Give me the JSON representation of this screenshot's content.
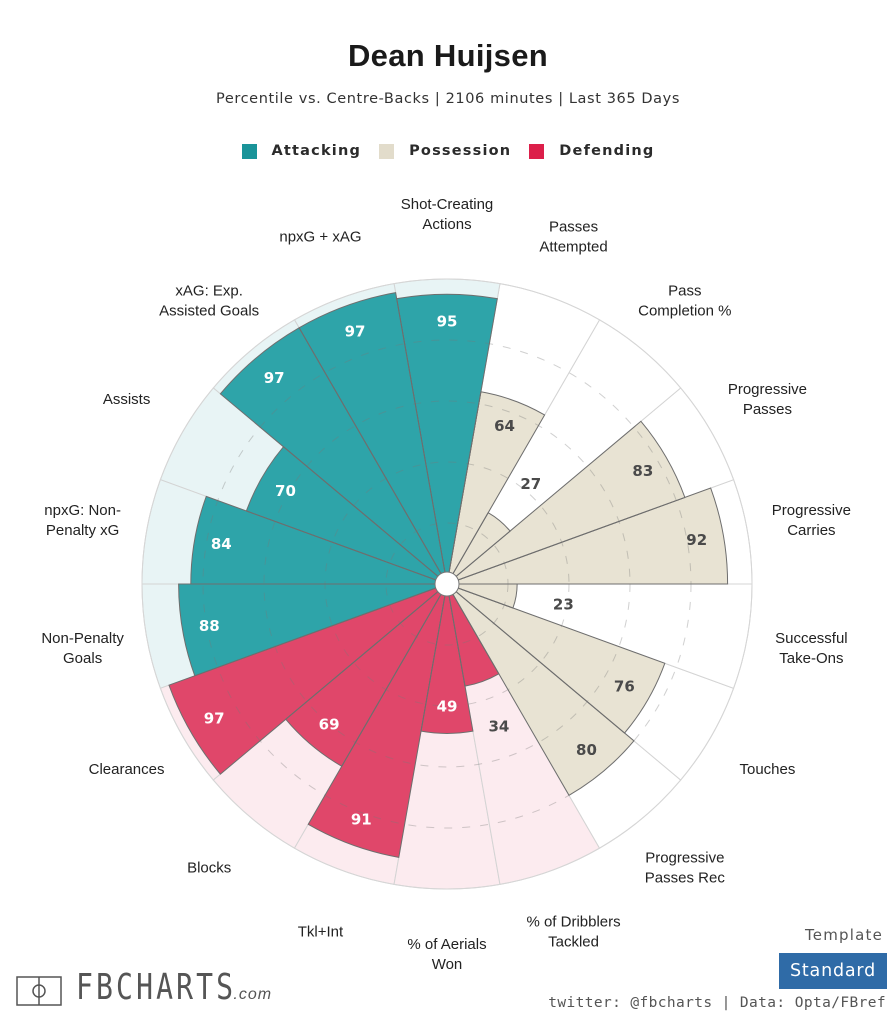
{
  "header": {
    "title": "Dean Huijsen",
    "subtitle": "Percentile vs. Centre-Backs | 2106 minutes | Last 365 Days"
  },
  "legend": [
    {
      "label": "Attacking",
      "color": "#1a9499"
    },
    {
      "label": "Possession",
      "color": "#e2dccb"
    },
    {
      "label": "Defending",
      "color": "#dc1f4a"
    }
  ],
  "colors": {
    "attacking_fill": "#2ea4a9",
    "possession_fill": "#e8e3d3",
    "defending_fill": "#e0476a",
    "attacking_bg": "#e8f4f5",
    "possession_bg": "#ffffff",
    "defending_bg": "#fcebef",
    "value_light": "#ffffff",
    "value_dark": "#4a4a4a"
  },
  "chart_data": {
    "type": "pie",
    "subtype": "polar-bar (pizza)",
    "title": "Dean Huijsen",
    "subtitle": "Percentile vs. Centre-Backs | 2106 minutes | Last 365 Days",
    "range": [
      0,
      100
    ],
    "gridlines": [
      20,
      40,
      60,
      80
    ],
    "legend_placement": "top-center",
    "start_direction": "east, counterclockwise",
    "categories": [
      {
        "label": "Progressive Carries",
        "value": 92,
        "group": "Possession"
      },
      {
        "label": "Progressive Passes",
        "value": 83,
        "group": "Possession"
      },
      {
        "label": "Pass Completion %",
        "value": 27,
        "group": "Possession"
      },
      {
        "label": "Passes Attempted",
        "value": 64,
        "group": "Possession"
      },
      {
        "label": "Shot-Creating Actions",
        "value": 95,
        "group": "Attacking"
      },
      {
        "label": "npxG + xAG",
        "value": 97,
        "group": "Attacking"
      },
      {
        "label": "xAG: Exp. Assisted Goals",
        "value": 97,
        "group": "Attacking"
      },
      {
        "label": "Assists",
        "value": 70,
        "group": "Attacking"
      },
      {
        "label": "npxG: Non-Penalty xG",
        "value": 84,
        "group": "Attacking"
      },
      {
        "label": "Non-Penalty Goals",
        "value": 88,
        "group": "Attacking"
      },
      {
        "label": "Clearances",
        "value": 97,
        "group": "Defending"
      },
      {
        "label": "Blocks",
        "value": 69,
        "group": "Defending"
      },
      {
        "label": "Tkl+Int",
        "value": 91,
        "group": "Defending"
      },
      {
        "label": "% of Aerials Won",
        "value": 49,
        "group": "Defending"
      },
      {
        "label": "% of Dribblers Tackled",
        "value": 34,
        "group": "Defending"
      },
      {
        "label": "Progressive Passes Rec",
        "value": 80,
        "group": "Possession"
      },
      {
        "label": "Touches",
        "value": 76,
        "group": "Possession"
      },
      {
        "label": "Successful Take-Ons",
        "value": 23,
        "group": "Possession"
      }
    ],
    "label_lines": [
      [
        "Progressive",
        "Carries"
      ],
      [
        "Progressive",
        "Passes"
      ],
      [
        "Pass",
        "Completion %"
      ],
      [
        "Passes",
        "Attempted"
      ],
      [
        "Shot-Creating",
        "Actions"
      ],
      [
        "npxG + xAG"
      ],
      [
        "xAG: Exp.",
        "Assisted Goals"
      ],
      [
        "Assists"
      ],
      [
        "npxG: Non-",
        "Penalty xG"
      ],
      [
        "Non-Penalty",
        "Goals"
      ],
      [
        "Clearances"
      ],
      [
        "Blocks"
      ],
      [
        "Tkl+Int"
      ],
      [
        "% of Aerials",
        "Won"
      ],
      [
        "% of Dribblers",
        "Tackled"
      ],
      [
        "Progressive",
        "Passes Rec"
      ],
      [
        "Touches"
      ],
      [
        "Successful",
        "Take-Ons"
      ]
    ]
  },
  "footer": {
    "logo_text": "FBCHARTS",
    "logo_suffix": ".com",
    "template_label": "Template",
    "template_value": "Standard",
    "credits": "twitter: @fbcharts | Data: Opta/FBref"
  }
}
